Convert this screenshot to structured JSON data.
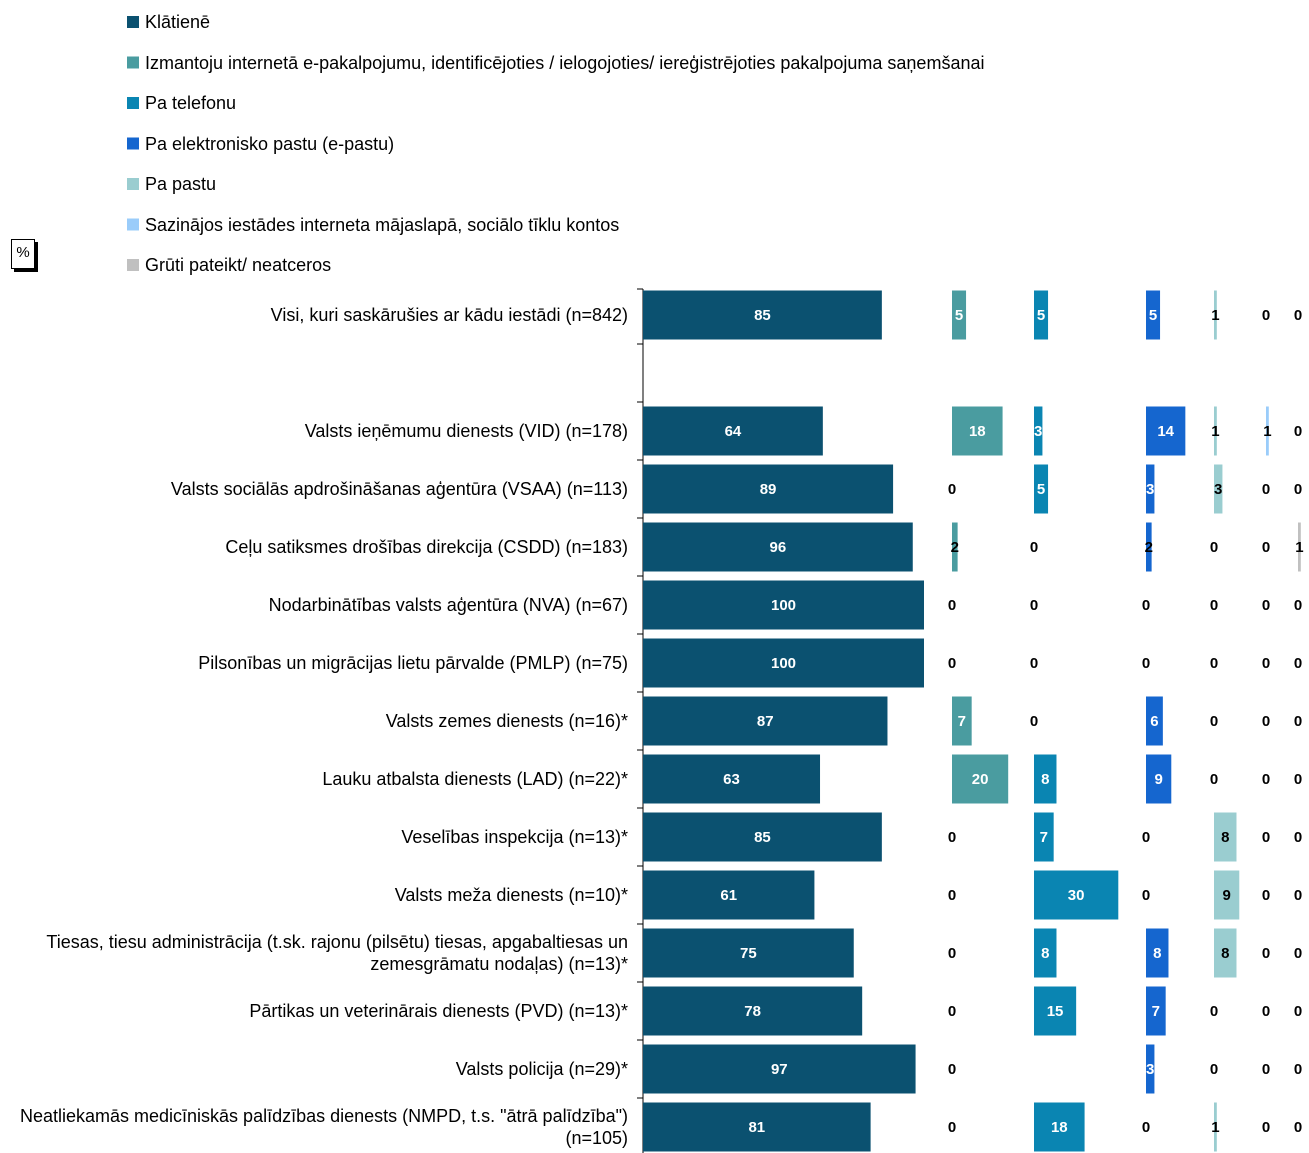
{
  "chart_data": {
    "type": "bar",
    "orientation": "horizontal",
    "layout": "small-multiples",
    "unit_label": "%",
    "categories": [
      "Visi, kuri saskārušies ar kādu iestādi (n=842)",
      "Valsts ieņēmumu dienests (VID) (n=178)",
      "Valsts sociālās apdrošināšanas aģentūra (VSAA) (n=113)",
      "Ceļu satiksmes drošības direkcija (CSDD) (n=183)",
      "Nodarbinātības valsts aģentūra (NVA) (n=67)",
      "Pilsonības un migrācijas lietu pārvalde (PMLP) (n=75)",
      "Valsts zemes dienests (n=16)*",
      "Lauku atbalsta dienests (LAD) (n=22)*",
      "Veselības inspekcija (n=13)*",
      "Valsts meža dienests (n=10)*",
      "Tiesas, tiesu administrācija (t.sk. rajonu (pilsētu) tiesas, apgabaltiesas un zemesgrāmatu nodaļas) (n=13)*",
      "Pārtikas un veterinārais dienests (PVD) (n=13)*",
      "Valsts policija (n=29)*",
      "Neatliekamās medicīniskās palīdzības dienests (NMPD, t.s. \"ātrā palīdzība\") (n=105)"
    ],
    "series": [
      {
        "name": "Klātienē",
        "color": "#0b5170",
        "values": [
          85,
          64,
          89,
          96,
          100,
          100,
          87,
          63,
          85,
          61,
          75,
          78,
          97,
          81
        ]
      },
      {
        "name": "Izmantoju internetā e-pakalpojumu, identificējoties / ielogojoties/ iereģistrējoties pakalpojuma saņemšanai",
        "color": "#4a9ca0",
        "values": [
          5,
          18,
          0,
          2,
          0,
          0,
          7,
          20,
          0,
          0,
          0,
          0,
          0,
          0
        ]
      },
      {
        "name": "Pa telefonu",
        "color": "#0a85b2",
        "values": [
          5,
          3,
          5,
          0,
          0,
          0,
          0,
          8,
          7,
          30,
          8,
          15,
          null,
          18
        ]
      },
      {
        "name": "Pa elektronisko pastu (e-pastu)",
        "color": "#1566cf",
        "values": [
          5,
          14,
          3,
          2,
          0,
          0,
          6,
          9,
          0,
          0,
          8,
          7,
          3,
          0
        ]
      },
      {
        "name": "Pa pastu",
        "color": "#9acdd0",
        "values": [
          1,
          1,
          3,
          0,
          0,
          0,
          0,
          0,
          8,
          9,
          8,
          0,
          0,
          1
        ]
      },
      {
        "name": "Sazinājos iestādes interneta mājaslapā, sociālo tīklu kontos",
        "color": "#9accfa",
        "values": [
          0,
          1,
          0,
          0,
          0,
          0,
          0,
          0,
          0,
          0,
          0,
          0,
          0,
          0
        ]
      },
      {
        "name": "Grūti pateikt/ neatceros",
        "color": "#c0c0c0",
        "values": [
          0,
          0,
          0,
          1,
          0,
          0,
          0,
          0,
          0,
          0,
          0,
          0,
          0,
          0
        ]
      }
    ]
  }
}
